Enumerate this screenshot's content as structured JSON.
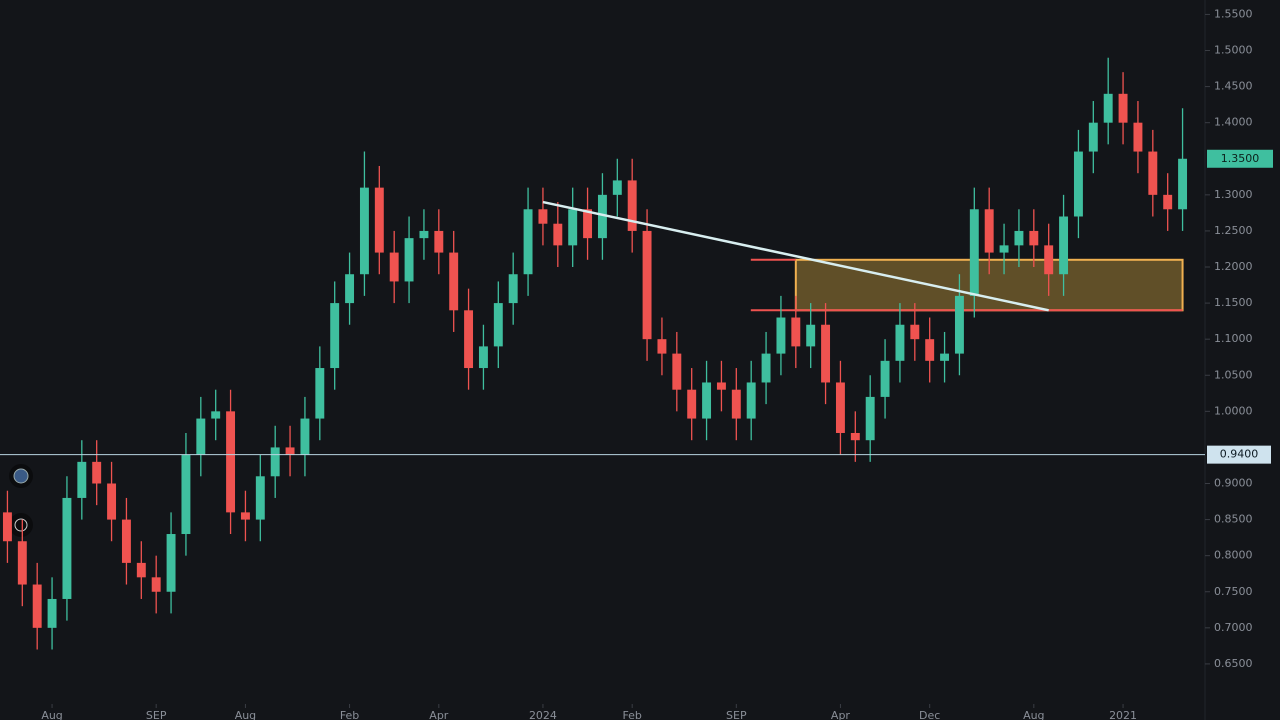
{
  "chart_data": {
    "type": "candlestick",
    "up_color": "#3fbf9f",
    "down_color": "#ef5350",
    "grid": false,
    "ylim": [
      0.6,
      1.57
    ],
    "yticks": [
      {
        "value": 0.65,
        "label": "0.6500"
      },
      {
        "value": 0.7,
        "label": "0.7000"
      },
      {
        "value": 0.75,
        "label": "0.7500"
      },
      {
        "value": 0.8,
        "label": "0.8000"
      },
      {
        "value": 0.85,
        "label": "0.8500"
      },
      {
        "value": 0.9,
        "label": "0.9000"
      },
      {
        "value": 1.0,
        "label": "1.0000"
      },
      {
        "value": 1.05,
        "label": "1.0500"
      },
      {
        "value": 1.1,
        "label": "1.1000"
      },
      {
        "value": 1.15,
        "label": "1.1500"
      },
      {
        "value": 1.2,
        "label": "1.2000"
      },
      {
        "value": 1.25,
        "label": "1.2500"
      },
      {
        "value": 1.3,
        "label": "1.3000"
      },
      {
        "value": 1.4,
        "label": "1.4000"
      },
      {
        "value": 1.45,
        "label": "1.4500"
      },
      {
        "value": 1.5,
        "label": "1.5000"
      },
      {
        "value": 1.55,
        "label": "1.5500"
      }
    ],
    "xticks": [
      {
        "value": 3,
        "label": "Aug"
      },
      {
        "value": 10,
        "label": "SEP"
      },
      {
        "value": 16,
        "label": "Aug"
      },
      {
        "value": 23,
        "label": "Feb"
      },
      {
        "value": 29,
        "label": "Apr"
      },
      {
        "value": 36,
        "label": "2024"
      },
      {
        "value": 42,
        "label": "Feb"
      },
      {
        "value": 49,
        "label": "SEP"
      },
      {
        "value": 56,
        "label": "Apr"
      },
      {
        "value": 62,
        "label": "Dec"
      },
      {
        "value": 69,
        "label": "Aug"
      },
      {
        "value": 75,
        "label": "2021"
      }
    ],
    "open": [
      0.86,
      0.82,
      0.76,
      0.7,
      0.74,
      0.88,
      0.93,
      0.9,
      0.85,
      0.79,
      0.77,
      0.75,
      0.83,
      0.94,
      0.99,
      1.0,
      0.86,
      0.85,
      0.91,
      0.95,
      0.94,
      0.99,
      1.06,
      1.15,
      1.19,
      1.31,
      1.22,
      1.18,
      1.24,
      1.25,
      1.22,
      1.14,
      1.06,
      1.09,
      1.15,
      1.19,
      1.28,
      1.26,
      1.23,
      1.28,
      1.24,
      1.3,
      1.32,
      1.25,
      1.1,
      1.08,
      1.03,
      0.99,
      1.04,
      1.03,
      0.99,
      1.04,
      1.08,
      1.13,
      1.09,
      1.12,
      1.04,
      0.97,
      0.96,
      1.02,
      1.07,
      1.12,
      1.1,
      1.07,
      1.08,
      1.16,
      1.28,
      1.22,
      1.23,
      1.25,
      1.23,
      1.19,
      1.27,
      1.36,
      1.4,
      1.44,
      1.4,
      1.36,
      1.3,
      1.28
    ],
    "high": [
      0.89,
      0.85,
      0.79,
      0.77,
      0.91,
      0.96,
      0.96,
      0.93,
      0.88,
      0.82,
      0.8,
      0.86,
      0.97,
      1.02,
      1.03,
      1.03,
      0.89,
      0.94,
      0.98,
      0.98,
      1.02,
      1.09,
      1.18,
      1.22,
      1.36,
      1.34,
      1.25,
      1.27,
      1.28,
      1.28,
      1.25,
      1.17,
      1.12,
      1.18,
      1.22,
      1.31,
      1.31,
      1.29,
      1.31,
      1.31,
      1.33,
      1.35,
      1.35,
      1.28,
      1.13,
      1.11,
      1.06,
      1.07,
      1.07,
      1.06,
      1.07,
      1.11,
      1.16,
      1.16,
      1.15,
      1.15,
      1.07,
      1.0,
      1.05,
      1.1,
      1.15,
      1.15,
      1.13,
      1.11,
      1.19,
      1.31,
      1.31,
      1.26,
      1.28,
      1.28,
      1.26,
      1.3,
      1.39,
      1.43,
      1.49,
      1.47,
      1.43,
      1.39,
      1.33,
      1.42
    ],
    "low": [
      0.79,
      0.73,
      0.67,
      0.67,
      0.71,
      0.85,
      0.87,
      0.82,
      0.76,
      0.74,
      0.72,
      0.72,
      0.8,
      0.91,
      0.96,
      0.83,
      0.82,
      0.82,
      0.88,
      0.91,
      0.91,
      0.96,
      1.03,
      1.12,
      1.16,
      1.19,
      1.15,
      1.15,
      1.21,
      1.19,
      1.11,
      1.03,
      1.03,
      1.06,
      1.12,
      1.16,
      1.23,
      1.2,
      1.2,
      1.21,
      1.21,
      1.27,
      1.22,
      1.07,
      1.05,
      1.0,
      0.96,
      0.96,
      1.0,
      0.96,
      0.96,
      1.01,
      1.05,
      1.06,
      1.06,
      1.01,
      0.94,
      0.93,
      0.93,
      0.99,
      1.04,
      1.07,
      1.04,
      1.04,
      1.05,
      1.13,
      1.19,
      1.19,
      1.2,
      1.2,
      1.16,
      1.16,
      1.24,
      1.33,
      1.37,
      1.37,
      1.33,
      1.27,
      1.25,
      1.25
    ],
    "close": [
      0.82,
      0.76,
      0.7,
      0.74,
      0.88,
      0.93,
      0.9,
      0.85,
      0.79,
      0.77,
      0.75,
      0.83,
      0.94,
      0.99,
      1.0,
      0.86,
      0.85,
      0.91,
      0.95,
      0.94,
      0.99,
      1.06,
      1.15,
      1.19,
      1.31,
      1.22,
      1.18,
      1.24,
      1.25,
      1.22,
      1.14,
      1.06,
      1.09,
      1.15,
      1.19,
      1.28,
      1.26,
      1.23,
      1.28,
      1.24,
      1.3,
      1.32,
      1.25,
      1.1,
      1.08,
      1.03,
      0.99,
      1.04,
      1.03,
      0.99,
      1.04,
      1.08,
      1.13,
      1.09,
      1.12,
      1.04,
      0.97,
      0.96,
      1.02,
      1.07,
      1.12,
      1.1,
      1.07,
      1.08,
      1.16,
      1.28,
      1.22,
      1.23,
      1.25,
      1.23,
      1.19,
      1.27,
      1.36,
      1.4,
      1.44,
      1.4,
      1.36,
      1.3,
      1.28,
      1.35
    ],
    "price_line": {
      "value": 0.94,
      "label": "0.9400"
    },
    "last_price": {
      "value": 1.35,
      "label": "1.3500"
    },
    "zone": {
      "top": 1.21,
      "bottom": 1.14,
      "start": 53,
      "end": 79
    },
    "trend_line": {
      "start": 36,
      "start_value": 1.29,
      "end": 70,
      "end_value": 1.14
    }
  }
}
